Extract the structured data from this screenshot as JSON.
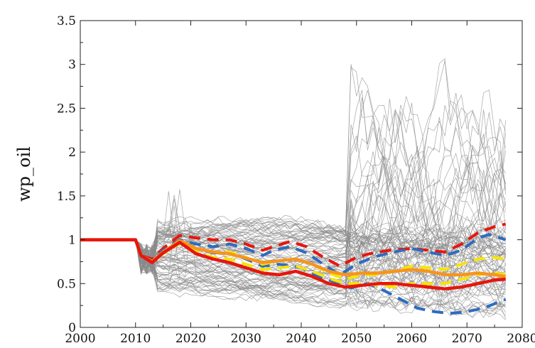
{
  "chart_data": {
    "type": "line",
    "title": "",
    "xlabel": "",
    "ylabel": "wp_oil",
    "xlim": [
      2000,
      2080
    ],
    "ylim": [
      0,
      3.5
    ],
    "xticks": [
      2000,
      2010,
      2020,
      2030,
      2040,
      2050,
      2060,
      2070,
      2080
    ],
    "yticks": [
      0,
      0.5,
      1,
      1.5,
      2,
      2.5,
      3,
      3.5
    ],
    "ytick_labels": [
      "0",
      "0.5",
      "1",
      "1.5",
      "2",
      "2.5",
      "3",
      "3.5"
    ],
    "grid": false,
    "legend": "none",
    "ensemble": {
      "description": "many gray simulation traces",
      "color": "#8a8a8a",
      "count": 90,
      "x_start": 2000,
      "x_end": 2077
    },
    "series": [
      {
        "color": "#e8150c",
        "style": "dashed",
        "x": [
          2000,
          2010,
          2011,
          2013,
          2015,
          2018,
          2021,
          2024,
          2027,
          2030,
          2033,
          2035,
          2038,
          2041,
          2044,
          2047,
          2050,
          2053,
          2056,
          2060,
          2063,
          2066,
          2069,
          2072,
          2075,
          2077
        ],
        "y": [
          1.0,
          1.0,
          0.82,
          0.78,
          0.9,
          1.05,
          1.02,
          1.0,
          1.0,
          0.95,
          0.88,
          0.92,
          0.98,
          0.92,
          0.8,
          0.7,
          0.8,
          0.85,
          0.88,
          0.9,
          0.88,
          0.86,
          0.95,
          1.08,
          1.15,
          1.18
        ]
      },
      {
        "color": "#2d6cc0",
        "style": "dashed",
        "x": [
          2000,
          2010,
          2011,
          2013,
          2015,
          2018,
          2021,
          2024,
          2027,
          2030,
          2033,
          2035,
          2038,
          2041,
          2044,
          2047,
          2050,
          2053,
          2056,
          2060,
          2063,
          2066,
          2069,
          2072,
          2074,
          2077
        ],
        "y": [
          1.0,
          1.0,
          0.82,
          0.76,
          0.88,
          1.0,
          0.95,
          0.92,
          0.95,
          0.9,
          0.82,
          0.88,
          0.92,
          0.85,
          0.72,
          0.6,
          0.72,
          0.8,
          0.85,
          0.9,
          0.86,
          0.82,
          0.88,
          1.02,
          1.06,
          1.0
        ]
      },
      {
        "color": "#2d6cc0",
        "style": "dashed",
        "x": [
          2000,
          2010,
          2011,
          2013,
          2015,
          2018,
          2021,
          2024,
          2027,
          2030,
          2033,
          2036,
          2040,
          2043,
          2046,
          2049,
          2052,
          2055,
          2058,
          2061,
          2064,
          2067,
          2070,
          2073,
          2077
        ],
        "y": [
          1.0,
          1.0,
          0.82,
          0.74,
          0.86,
          0.98,
          0.9,
          0.85,
          0.85,
          0.78,
          0.7,
          0.72,
          0.68,
          0.58,
          0.52,
          0.45,
          0.5,
          0.42,
          0.32,
          0.22,
          0.18,
          0.16,
          0.18,
          0.22,
          0.32
        ]
      },
      {
        "color": "#f7e400",
        "style": "dashed",
        "x": [
          2000,
          2010,
          2011,
          2013,
          2015,
          2018,
          2021,
          2024,
          2027,
          2030,
          2033,
          2036,
          2039,
          2042,
          2045,
          2048,
          2051,
          2054,
          2057,
          2060,
          2063,
          2066,
          2069,
          2072,
          2075,
          2077
        ],
        "y": [
          1.0,
          1.0,
          0.82,
          0.75,
          0.86,
          0.98,
          0.9,
          0.86,
          0.86,
          0.8,
          0.72,
          0.76,
          0.78,
          0.72,
          0.62,
          0.55,
          0.6,
          0.6,
          0.65,
          0.7,
          0.68,
          0.66,
          0.72,
          0.78,
          0.8,
          0.78
        ]
      },
      {
        "color": "#f7e400",
        "style": "dashed",
        "x": [
          2000,
          2010,
          2011,
          2013,
          2015,
          2018,
          2021,
          2024,
          2027,
          2030,
          2033,
          2036,
          2039,
          2042,
          2045,
          2048,
          2051,
          2054,
          2057,
          2060,
          2063,
          2066,
          2069,
          2072,
          2075,
          2077
        ],
        "y": [
          1.0,
          1.0,
          0.82,
          0.74,
          0.84,
          0.96,
          0.86,
          0.8,
          0.78,
          0.72,
          0.66,
          0.68,
          0.7,
          0.64,
          0.56,
          0.5,
          0.5,
          0.48,
          0.46,
          0.5,
          0.5,
          0.5,
          0.55,
          0.6,
          0.62,
          0.6
        ]
      },
      {
        "color": "#f7941d",
        "style": "solid",
        "x": [
          2000,
          2010,
          2011,
          2013,
          2015,
          2018,
          2021,
          2024,
          2027,
          2030,
          2033,
          2036,
          2039,
          2042,
          2045,
          2048,
          2051,
          2054,
          2057,
          2060,
          2063,
          2066,
          2069,
          2072,
          2075,
          2077
        ],
        "y": [
          1.0,
          1.0,
          0.82,
          0.75,
          0.86,
          0.99,
          0.9,
          0.86,
          0.84,
          0.79,
          0.74,
          0.76,
          0.78,
          0.72,
          0.64,
          0.6,
          0.62,
          0.62,
          0.64,
          0.66,
          0.64,
          0.6,
          0.6,
          0.62,
          0.6,
          0.58
        ]
      },
      {
        "color": "#e8150c",
        "style": "solid",
        "x": [
          2000,
          2010,
          2011,
          2013,
          2015,
          2018,
          2021,
          2024,
          2027,
          2030,
          2033,
          2036,
          2039,
          2042,
          2045,
          2048,
          2051,
          2054,
          2057,
          2060,
          2063,
          2066,
          2069,
          2072,
          2075,
          2077
        ],
        "y": [
          1.0,
          1.0,
          0.82,
          0.74,
          0.85,
          0.97,
          0.84,
          0.78,
          0.74,
          0.68,
          0.62,
          0.6,
          0.64,
          0.58,
          0.5,
          0.46,
          0.48,
          0.5,
          0.5,
          0.48,
          0.46,
          0.44,
          0.46,
          0.5,
          0.54,
          0.55
        ]
      }
    ]
  }
}
